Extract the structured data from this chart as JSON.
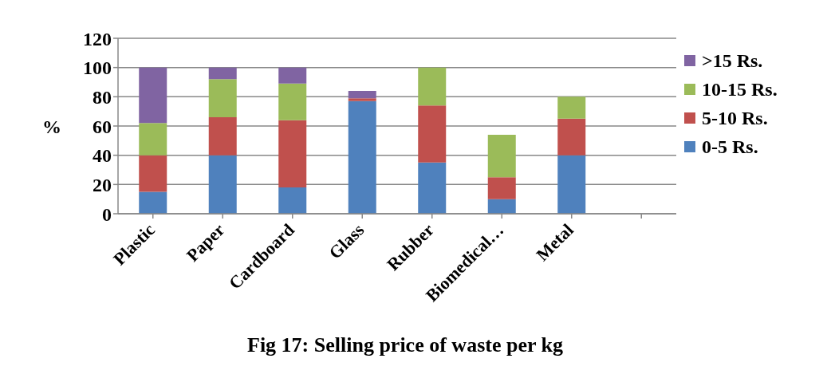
{
  "chart_data": {
    "type": "bar",
    "title": "Fig 17: Selling price of waste per kg",
    "ylabel": "%",
    "categories": [
      "Plastic",
      "Paper",
      "Cardboard",
      "Glass",
      "Rubber",
      "Biomedical…",
      "Metal",
      null
    ],
    "stacked": true,
    "series": [
      {
        "name": "0-5 Rs.",
        "color": "#4f81bd",
        "values": [
          15,
          40,
          18,
          77,
          35,
          10,
          40,
          null
        ]
      },
      {
        "name": "5-10 Rs.",
        "color": "#c0504d",
        "values": [
          25,
          26,
          46,
          2,
          39,
          15,
          25,
          null
        ]
      },
      {
        "name": "10-15 Rs.",
        "color": "#9bbb59",
        "values": [
          22,
          26,
          25,
          null,
          26,
          29,
          15,
          null
        ]
      },
      {
        "name": ">15 Rs.",
        "color": "#8064a2",
        "values": [
          38,
          8,
          11,
          5,
          null,
          null,
          null,
          null
        ]
      }
    ],
    "ylim": [
      0,
      120
    ],
    "yticks": [
      0,
      20,
      40,
      60,
      80,
      100,
      120
    ],
    "grid": "y",
    "legend": "right"
  }
}
